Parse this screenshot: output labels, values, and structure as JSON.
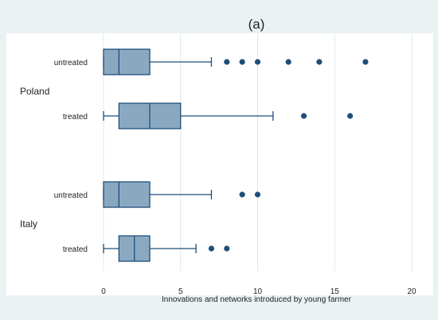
{
  "chart_data": {
    "type": "boxplot",
    "orientation": "horizontal",
    "title": "(a)",
    "xlabel": "Innovations and networks introduced by young farmer",
    "xlim": [
      0,
      20
    ],
    "xticks": [
      0,
      5,
      10,
      15,
      20
    ],
    "grid": "vertical",
    "colors": {
      "box": "#8aa9c1",
      "stroke": "#1f4e79",
      "outlier": "#1f4e79",
      "grid": "#dde8ef",
      "outer_bg": "#eaf2f3"
    },
    "groups": [
      {
        "name": "Poland",
        "series": [
          {
            "name": "untreated",
            "min": 0,
            "q1": 0,
            "median": 1,
            "q3": 3,
            "max": 7,
            "outliers": [
              8,
              9,
              10,
              12,
              14,
              17
            ]
          },
          {
            "name": "treated",
            "min": 0,
            "q1": 1,
            "median": 3,
            "q3": 5,
            "max": 11,
            "outliers": [
              13,
              16
            ]
          }
        ]
      },
      {
        "name": "Italy",
        "series": [
          {
            "name": "untreated",
            "min": 0,
            "q1": 0,
            "median": 1,
            "q3": 3,
            "max": 7,
            "outliers": [
              9,
              10
            ]
          },
          {
            "name": "treated",
            "min": 0,
            "q1": 1,
            "median": 2,
            "q3": 3,
            "max": 6,
            "outliers": [
              7,
              8
            ]
          }
        ]
      }
    ]
  }
}
